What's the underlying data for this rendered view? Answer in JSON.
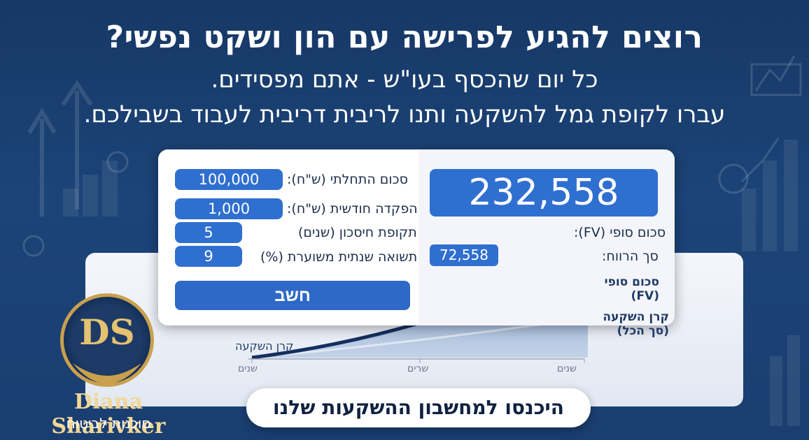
{
  "headline": {
    "title": "רוצים להגיע לפרישה עם הון ושקט נפשי?",
    "line2": "כל יום שהכסף בעו\"ש - אתם מפסידים.",
    "line3": "עברו לקופת גמל להשקעה ותנו לריבית דריבית לעבוד בשבילכם."
  },
  "calculator": {
    "initial_label": "סכום התחלתי (ש\"ח):",
    "initial_value": "100,000",
    "monthly_label": "הפקדה חודשית (ש\"ח):",
    "monthly_value": "1,000",
    "period_label": "תקופת חיסכון (שנים)",
    "period_value": "5",
    "return_label": "תשואה שנתית משוערת (%)",
    "return_value": "9",
    "calc_button": "חשב",
    "fv_value": "232,558",
    "fv_label": "סכום סופי (FV):",
    "profit_label": "סך הרווח:",
    "profit_value": "72,558"
  },
  "chart": {
    "legend_fv": "סכום סופי (FV)",
    "legend_principal": "קרן השקעה (סך הכל)",
    "principal_label": "קרן השקעה",
    "ticks": [
      "שנים",
      "שרים",
      "שנים"
    ]
  },
  "cta": {
    "label": "היכנסו למחשבון ההשקעות שלנו"
  },
  "brand": {
    "monogram": "DS",
    "name": "Diana Sharivker",
    "subtitle": "סוכנות לביטוח",
    "gold": "#c9a04e"
  }
}
